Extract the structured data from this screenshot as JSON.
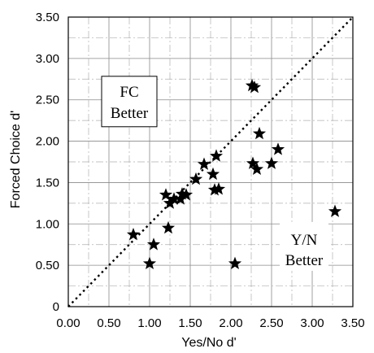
{
  "chart_data": {
    "type": "scatter",
    "title": "",
    "xlabel": "Yes/No d'",
    "ylabel": "Forced Choice d'",
    "xlim": [
      0,
      3.5
    ],
    "ylim": [
      0,
      3.5
    ],
    "x_ticks": [
      "0.00",
      "0.50",
      "1.00",
      "1.50",
      "2.00",
      "2.50",
      "3.00",
      "3.50"
    ],
    "y_ticks": [
      "0",
      "0.50",
      "1.00",
      "1.50",
      "2.00",
      "2.50",
      "3.00",
      "3.50"
    ],
    "grid": true,
    "marker": "star",
    "reference_line": {
      "style": "dotted",
      "from": [
        0,
        0
      ],
      "to": [
        3.5,
        3.5
      ]
    },
    "annotations": [
      {
        "lines": [
          "FC",
          "Better"
        ],
        "at": [
          0.75,
          2.45
        ]
      },
      {
        "lines": [
          "Y/N",
          "Better"
        ],
        "at": [
          2.9,
          0.65
        ]
      }
    ],
    "points": [
      {
        "x": 0.8,
        "y": 0.87
      },
      {
        "x": 1.0,
        "y": 0.52
      },
      {
        "x": 1.05,
        "y": 0.75
      },
      {
        "x": 1.2,
        "y": 1.35
      },
      {
        "x": 1.23,
        "y": 0.95
      },
      {
        "x": 1.25,
        "y": 1.25
      },
      {
        "x": 1.3,
        "y": 1.3
      },
      {
        "x": 1.38,
        "y": 1.3
      },
      {
        "x": 1.4,
        "y": 1.36
      },
      {
        "x": 1.45,
        "y": 1.35
      },
      {
        "x": 1.57,
        "y": 1.54
      },
      {
        "x": 1.67,
        "y": 1.72
      },
      {
        "x": 1.78,
        "y": 1.6
      },
      {
        "x": 1.8,
        "y": 1.41
      },
      {
        "x": 1.82,
        "y": 1.82
      },
      {
        "x": 1.85,
        "y": 1.42
      },
      {
        "x": 2.05,
        "y": 0.52
      },
      {
        "x": 2.26,
        "y": 2.67
      },
      {
        "x": 2.27,
        "y": 1.73
      },
      {
        "x": 2.29,
        "y": 2.65
      },
      {
        "x": 2.32,
        "y": 1.66
      },
      {
        "x": 2.35,
        "y": 2.09
      },
      {
        "x": 2.5,
        "y": 1.73
      },
      {
        "x": 2.58,
        "y": 1.9
      },
      {
        "x": 3.28,
        "y": 1.15
      }
    ]
  }
}
